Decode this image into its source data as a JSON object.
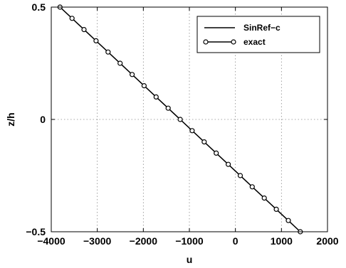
{
  "chart_data": {
    "type": "line",
    "xlabel": "u",
    "ylabel": "z/h",
    "xlim": [
      -4000,
      2000
    ],
    "ylim": [
      -0.5,
      0.5
    ],
    "x_ticks": [
      -4000,
      -3000,
      -2000,
      -1000,
      0,
      1000,
      2000
    ],
    "y_ticks": [
      -0.5,
      0,
      0.5
    ],
    "x_tick_labels": [
      "−4000",
      "−3000",
      "−2000",
      "−1000",
      "0",
      "1000",
      "2000"
    ],
    "y_tick_labels": [
      "−0.5",
      "0",
      "0.5"
    ],
    "grid": true,
    "legend_position": "top-right",
    "series": [
      {
        "name": "SinRef−c",
        "style": "solid-line",
        "color": "#000000",
        "x": [
          -3810,
          1410
        ],
        "y": [
          0.5,
          -0.5
        ]
      },
      {
        "name": "exact",
        "style": "line-circle-markers",
        "color": "#000000",
        "x": [
          -3810,
          -3549,
          -3288,
          -3027,
          -2766,
          -2505,
          -2244,
          -1983,
          -1722,
          -1461,
          -1200,
          -939,
          -678,
          -417,
          -156,
          105,
          366,
          627,
          888,
          1149,
          1410
        ],
        "y": [
          0.5,
          0.45,
          0.4,
          0.35,
          0.3,
          0.25,
          0.2,
          0.15,
          0.1,
          0.05,
          0.0,
          -0.05,
          -0.1,
          -0.15,
          -0.2,
          -0.25,
          -0.3,
          -0.35,
          -0.4,
          -0.45,
          -0.5
        ]
      }
    ]
  }
}
